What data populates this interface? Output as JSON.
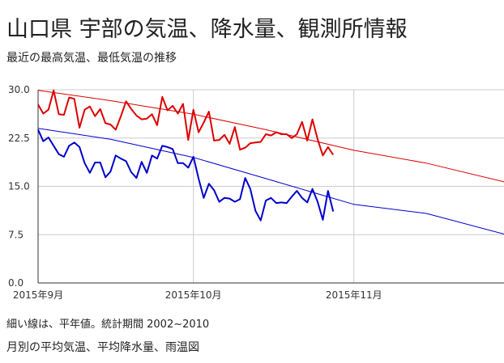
{
  "header": {
    "title": "山口県 宇部の気温、降水量、観測所情報",
    "subtitle": "最近の最高気温、最低気温の推移"
  },
  "footer": {
    "note": "細い線は、平年値。統計期間 2002~2010",
    "link": "月別の平均気温、平均降水量、雨温図"
  },
  "colors": {
    "max": "#dd0000",
    "min": "#0000cc",
    "grid": "#cccccc",
    "axis": "#333333"
  },
  "chart_data": {
    "type": "line",
    "x_start": "2015-09-01",
    "x_end": "2015-11-30",
    "ylim": [
      0,
      30
    ],
    "y_ticks": [
      0,
      7.5,
      15,
      22.5,
      30
    ],
    "y_tick_labels": [
      "0.0",
      "7.5",
      "15.0",
      "22.5",
      "30.0"
    ],
    "x_ticks": [
      "2015-09-01",
      "2015-10-01",
      "2015-11-01"
    ],
    "x_tick_labels": [
      "2015年9月",
      "2015年10月",
      "2015年11月"
    ],
    "grid": true,
    "series": [
      {
        "key": "max",
        "x": [
          "2015-09-01",
          "2015-09-02",
          "2015-09-03",
          "2015-09-04",
          "2015-09-05",
          "2015-09-06",
          "2015-09-07",
          "2015-09-08",
          "2015-09-09",
          "2015-09-10",
          "2015-09-11",
          "2015-09-12",
          "2015-09-13",
          "2015-09-14",
          "2015-09-15",
          "2015-09-16",
          "2015-09-17",
          "2015-09-18",
          "2015-09-19",
          "2015-09-20",
          "2015-09-21",
          "2015-09-22",
          "2015-09-23",
          "2015-09-24",
          "2015-09-25",
          "2015-09-26",
          "2015-09-27",
          "2015-09-28",
          "2015-09-29",
          "2015-09-30",
          "2015-10-01",
          "2015-10-02",
          "2015-10-03",
          "2015-10-04",
          "2015-10-05",
          "2015-10-06",
          "2015-10-07",
          "2015-10-08",
          "2015-10-09",
          "2015-10-10",
          "2015-10-11",
          "2015-10-12",
          "2015-10-13",
          "2015-10-14",
          "2015-10-15",
          "2015-10-16",
          "2015-10-17",
          "2015-10-18",
          "2015-10-19",
          "2015-10-20",
          "2015-10-21",
          "2015-10-22",
          "2015-10-23",
          "2015-10-24",
          "2015-10-25",
          "2015-10-26",
          "2015-10-27",
          "2015-10-28",
          "2015-10-29"
        ],
        "values": [
          27.7,
          26.3,
          26.9,
          29.9,
          26.2,
          26.1,
          28.8,
          28.6,
          24.1,
          26.9,
          27.4,
          25.9,
          27.0,
          24.8,
          24.6,
          23.8,
          25.9,
          28.2,
          27.0,
          26.0,
          25.4,
          25.5,
          26.2,
          24.5,
          28.9,
          26.8,
          27.5,
          26.3,
          27.8,
          22.2,
          26.9,
          23.4,
          24.9,
          26.6,
          22.1,
          22.2,
          23.0,
          21.6,
          24.2,
          20.7,
          21.0,
          21.7,
          21.8,
          21.9,
          23.1,
          22.9,
          23.4,
          23.1,
          23.1,
          22.5,
          23.1,
          25.0,
          22.1,
          25.4,
          22.3,
          19.8,
          21.1,
          19.9,
          null
        ]
      },
      {
        "key": "min",
        "x": [
          "2015-09-01",
          "2015-09-02",
          "2015-09-03",
          "2015-09-04",
          "2015-09-05",
          "2015-09-06",
          "2015-09-07",
          "2015-09-08",
          "2015-09-09",
          "2015-09-10",
          "2015-09-11",
          "2015-09-12",
          "2015-09-13",
          "2015-09-14",
          "2015-09-15",
          "2015-09-16",
          "2015-09-17",
          "2015-09-18",
          "2015-09-19",
          "2015-09-20",
          "2015-09-21",
          "2015-09-22",
          "2015-09-23",
          "2015-09-24",
          "2015-09-25",
          "2015-09-26",
          "2015-09-27",
          "2015-09-28",
          "2015-09-29",
          "2015-09-30",
          "2015-10-01",
          "2015-10-02",
          "2015-10-03",
          "2015-10-04",
          "2015-10-05",
          "2015-10-06",
          "2015-10-07",
          "2015-10-08",
          "2015-10-09",
          "2015-10-10",
          "2015-10-11",
          "2015-10-12",
          "2015-10-13",
          "2015-10-14",
          "2015-10-15",
          "2015-10-16",
          "2015-10-17",
          "2015-10-18",
          "2015-10-19",
          "2015-10-20",
          "2015-10-21",
          "2015-10-22",
          "2015-10-23",
          "2015-10-24",
          "2015-10-25",
          "2015-10-26",
          "2015-10-27",
          "2015-10-28",
          "2015-10-29"
        ],
        "values": [
          23.8,
          22.0,
          22.6,
          21.3,
          20.0,
          19.6,
          21.3,
          21.8,
          21.1,
          18.6,
          17.1,
          18.7,
          18.7,
          16.4,
          17.3,
          19.8,
          19.3,
          18.9,
          17.2,
          16.3,
          18.8,
          17.1,
          19.8,
          19.3,
          21.3,
          21.1,
          20.8,
          18.6,
          18.6,
          17.9,
          19.6,
          16.2,
          13.2,
          15.4,
          14.4,
          12.6,
          13.2,
          13.1,
          12.6,
          13.0,
          16.3,
          14.6,
          11.2,
          9.7,
          12.8,
          13.2,
          12.4,
          12.5,
          12.4,
          13.4,
          14.3,
          13.2,
          12.5,
          14.6,
          12.6,
          9.8,
          14.3,
          11.1,
          null
        ]
      },
      {
        "key": "max_normal",
        "x": [
          "2015-09-01",
          "2015-09-15",
          "2015-10-01",
          "2015-10-15",
          "2015-11-01",
          "2015-11-15",
          "2015-11-30"
        ],
        "values": [
          29.9,
          28.3,
          26.2,
          23.8,
          20.6,
          18.6,
          15.7
        ]
      },
      {
        "key": "min_normal",
        "x": [
          "2015-09-01",
          "2015-09-15",
          "2015-10-01",
          "2015-10-15",
          "2015-11-01",
          "2015-11-15",
          "2015-11-30"
        ],
        "values": [
          24.0,
          22.3,
          19.5,
          16.2,
          12.2,
          10.8,
          7.6
        ]
      }
    ]
  }
}
